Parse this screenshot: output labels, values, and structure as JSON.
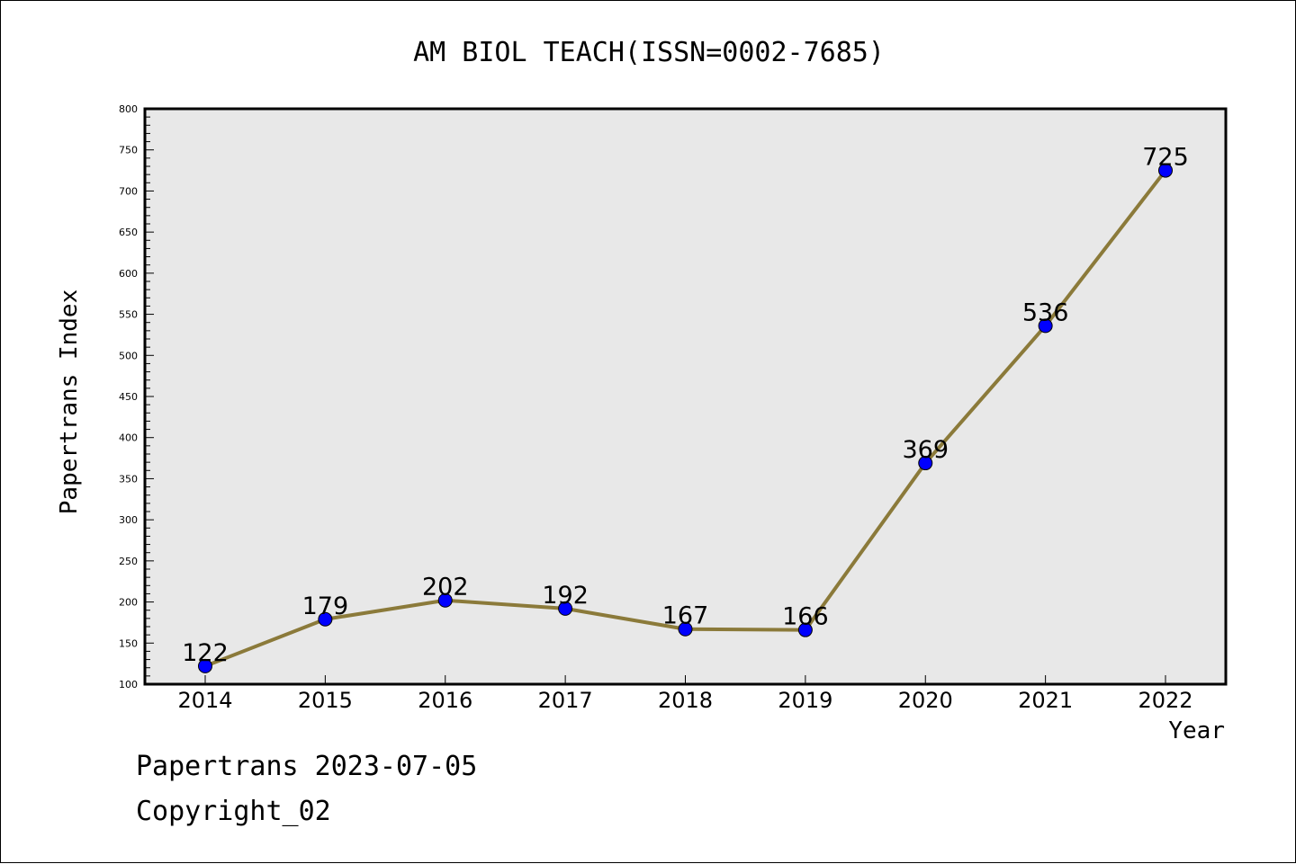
{
  "chart_data": {
    "type": "line",
    "title": "AM BIOL TEACH(ISSN=0002-7685)",
    "xlabel": "Year",
    "ylabel": "Papertrans Index",
    "categories": [
      "2014",
      "2015",
      "2016",
      "2017",
      "2018",
      "2019",
      "2020",
      "2021",
      "2022"
    ],
    "values": [
      122,
      179,
      202,
      192,
      167,
      166,
      369,
      536,
      725
    ],
    "data_labels": [
      "122",
      "179",
      "202",
      "192",
      "167",
      "166",
      "369",
      "536",
      "725"
    ],
    "ylim": [
      100,
      800
    ],
    "yticks": [
      "100",
      "150",
      "200",
      "250",
      "300",
      "350",
      "400",
      "450",
      "500",
      "550",
      "600",
      "650",
      "700",
      "750",
      "800"
    ],
    "grid": false,
    "line_color": "#8b7a3a",
    "marker_color": "#0000ff",
    "plot_background": "#e8e8e8"
  },
  "footer": {
    "date_line": "Papertrans 2023-07-05",
    "copyright": "Copyright_02"
  }
}
